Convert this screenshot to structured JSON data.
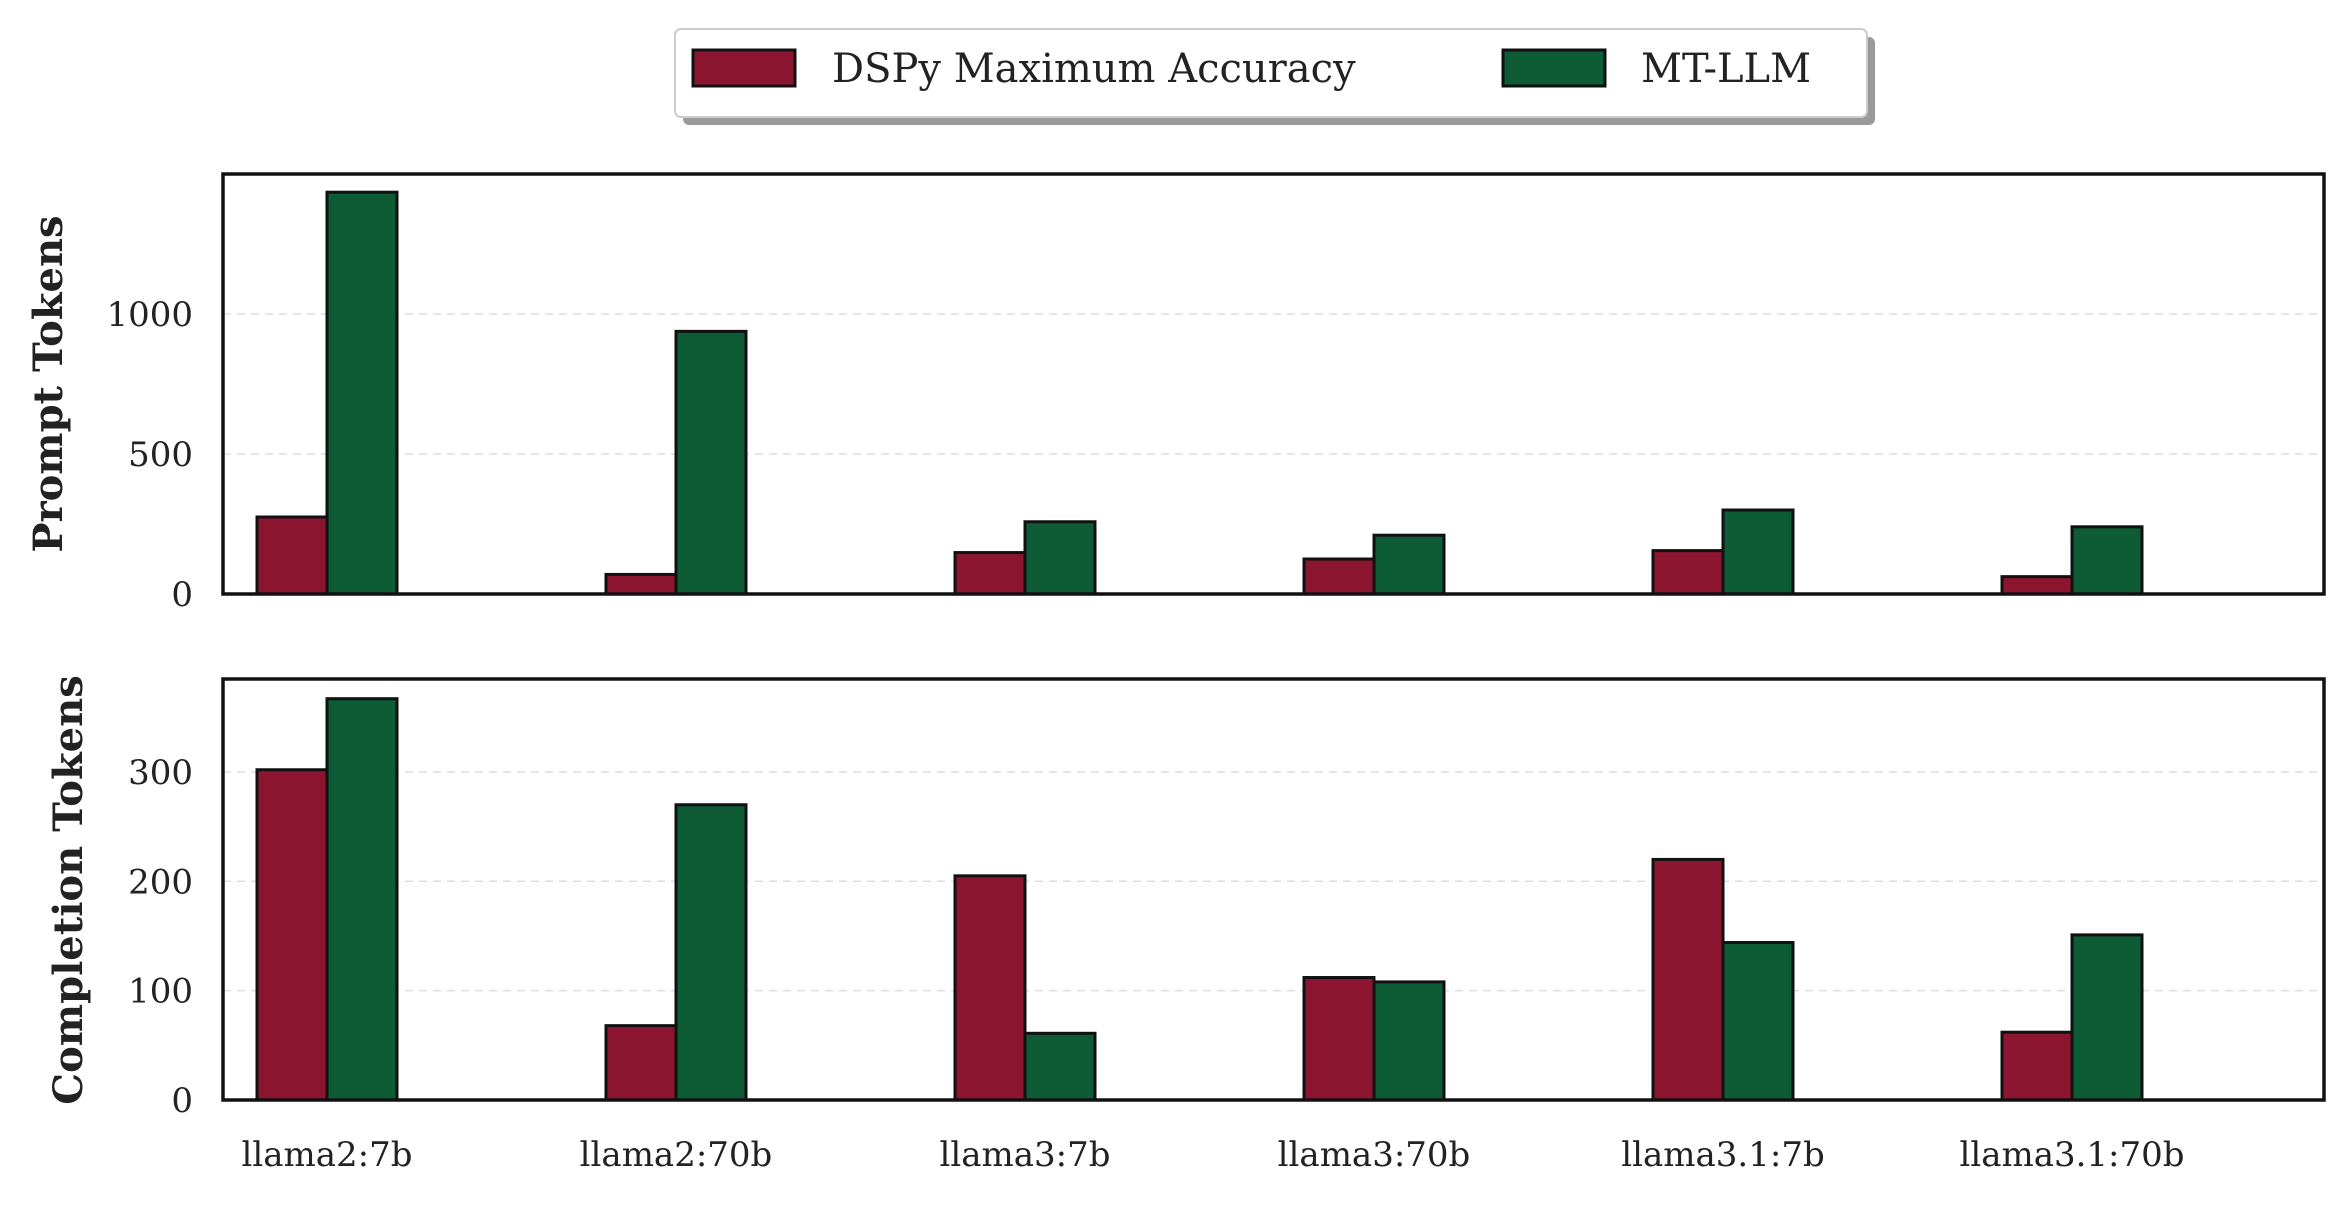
{
  "legend": {
    "items": [
      {
        "label": "DSPy Maximum Accuracy",
        "color": "#8c1630"
      },
      {
        "label": "MT-LLM",
        "color": "#0d5c36"
      }
    ]
  },
  "chart_data": [
    {
      "type": "bar",
      "ylabel": "Prompt Tokens",
      "categories": [
        "llama2:7b",
        "llama2:70b",
        "llama3:7b",
        "llama3:70b",
        "llama3.1:7b",
        "llama3.1:70b"
      ],
      "ylim": [
        0,
        1500
      ],
      "yticks": [
        0,
        500,
        1000
      ],
      "grid": true,
      "series": [
        {
          "name": "DSPy Maximum Accuracy",
          "color": "#8c1630",
          "values": [
            275,
            70,
            148,
            125,
            155,
            62
          ]
        },
        {
          "name": "MT-LLM",
          "color": "#0d5c36",
          "values": [
            1435,
            938,
            258,
            210,
            300,
            240
          ]
        }
      ]
    },
    {
      "type": "bar",
      "ylabel": "Completion Tokens",
      "categories": [
        "llama2:7b",
        "llama2:70b",
        "llama3:7b",
        "llama3:70b",
        "llama3.1:7b",
        "llama3.1:70b"
      ],
      "ylim": [
        0,
        385
      ],
      "yticks": [
        0,
        100,
        200,
        300
      ],
      "grid": true,
      "series": [
        {
          "name": "DSPy Maximum Accuracy",
          "color": "#8c1630",
          "values": [
            302,
            68,
            205,
            112,
            220,
            62
          ]
        },
        {
          "name": "MT-LLM",
          "color": "#0d5c36",
          "values": [
            367,
            270,
            61,
            108,
            144,
            151
          ]
        }
      ]
    }
  ]
}
